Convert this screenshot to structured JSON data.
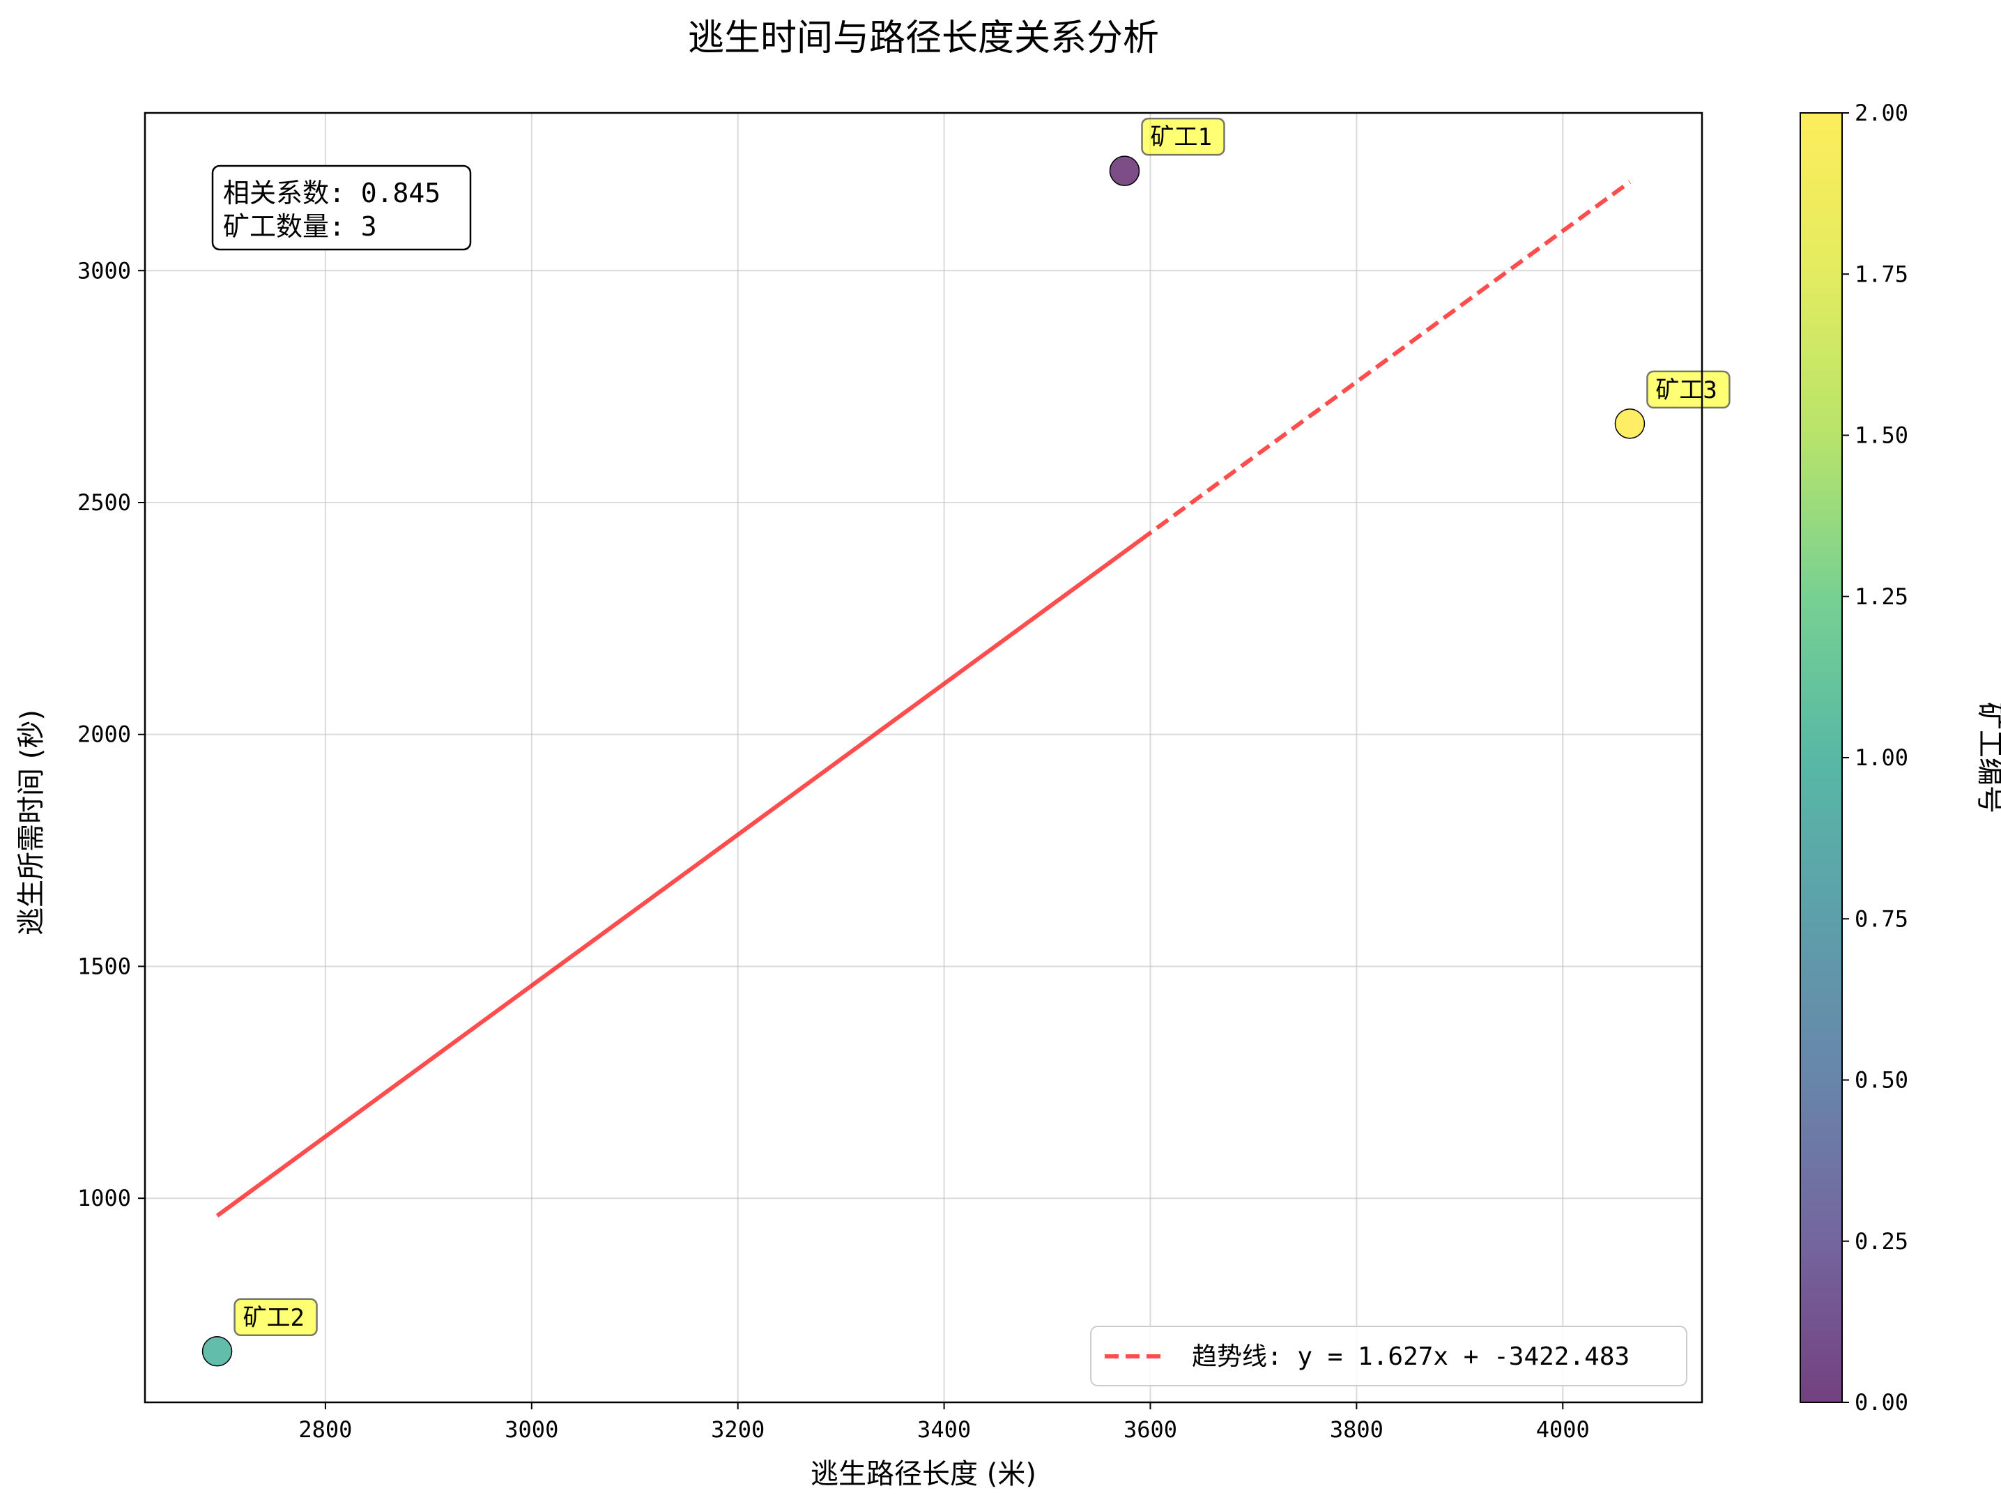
{
  "chart_data": {
    "type": "scatter",
    "title": "逃生时间与路径长度关系分析",
    "xlabel": "逃生路径长度 (米)",
    "ylabel": "逃生所需时间 (秒)",
    "xlim": [
      2625,
      4135
    ],
    "ylim": [
      560,
      3340
    ],
    "xticks": [
      2800,
      3000,
      3200,
      3400,
      3600,
      3800,
      4000
    ],
    "yticks": [
      1000,
      1500,
      2000,
      2500,
      3000
    ],
    "grid": true,
    "points": [
      {
        "label": "矿工1",
        "x": 3575,
        "y": 3215,
        "c": 0
      },
      {
        "label": "矿工2",
        "x": 2695,
        "y": 670,
        "c": 1
      },
      {
        "label": "矿工3",
        "x": 4065,
        "y": 2670,
        "c": 2
      }
    ],
    "trendline": {
      "slope": 1.627,
      "intercept": -3422.483,
      "x_range": [
        2695,
        4065
      ],
      "color": "#ff0000",
      "label": "趋势线: y = 1.627x + -3422.483"
    },
    "info_box": {
      "lines": [
        "相关系数: 0.845",
        "矿工数量: 3"
      ],
      "position": "top-left"
    },
    "legend_position": "bottom-right",
    "colorbar": {
      "label": "矿工编号",
      "min": 0,
      "max": 2,
      "ticks": [
        "0.00",
        "0.25",
        "0.50",
        "0.75",
        "1.00",
        "1.25",
        "1.50",
        "1.75",
        "2.00"
      ],
      "colormap": "viridis"
    }
  }
}
